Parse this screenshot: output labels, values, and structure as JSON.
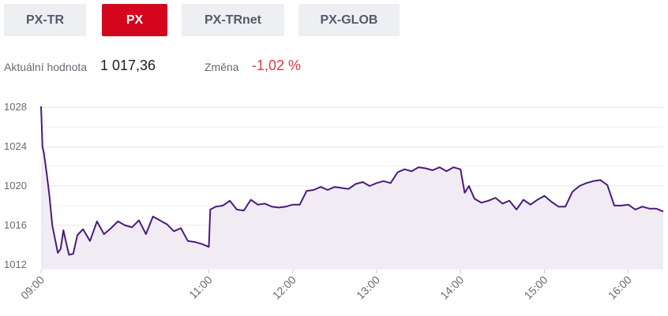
{
  "tabs": [
    {
      "label": "PX-TR",
      "active": false
    },
    {
      "label": "PX",
      "active": true
    },
    {
      "label": "PX-TRnet",
      "active": false
    },
    {
      "label": "PX-GLOB",
      "active": false
    }
  ],
  "stats": {
    "current_label": "Aktuální hodnota",
    "current_value": "1 017,36",
    "change_label": "Změna",
    "change_value": "-1,02 %"
  },
  "colors": {
    "accent": "#d4061f",
    "line": "#4b1a7e",
    "area": "#efeaf3",
    "negative": "#e0394b",
    "grid": "#e6e6e6"
  },
  "chart_data": {
    "type": "area",
    "title": "",
    "xlabel": "",
    "ylabel": "",
    "ylim": [
      1011.5,
      1028.5
    ],
    "xlim": [
      "09:00",
      "16:25"
    ],
    "grid": true,
    "legend": "none",
    "y_ticks": [
      "1012",
      "1016",
      "1020",
      "1024",
      "1028"
    ],
    "x_ticks": [
      "09:00",
      "11:00",
      "12:00",
      "13:00",
      "14:00",
      "15:00",
      "16:00"
    ],
    "series": [
      {
        "x": [
          "09:00",
          "09:01",
          "09:02",
          "09:04",
          "09:06",
          "09:08",
          "09:10",
          "09:12",
          "09:14",
          "09:16",
          "09:18",
          "09:20",
          "09:23",
          "09:26",
          "09:30",
          "09:35",
          "09:40",
          "09:45",
          "09:50",
          "09:55",
          "10:00",
          "10:05",
          "10:10",
          "10:15",
          "10:20",
          "10:25",
          "10:30",
          "10:35",
          "10:40",
          "10:45",
          "10:50",
          "10:55",
          "11:00",
          "11:01",
          "11:05",
          "11:10",
          "11:15",
          "11:20",
          "11:25",
          "11:30",
          "11:35",
          "11:40",
          "11:45",
          "11:50",
          "11:55",
          "12:00",
          "12:05",
          "12:10",
          "12:15",
          "12:20",
          "12:25",
          "12:30",
          "12:35",
          "12:40",
          "12:45",
          "12:50",
          "12:55",
          "13:00",
          "13:05",
          "13:10",
          "13:15",
          "13:20",
          "13:25",
          "13:30",
          "13:35",
          "13:40",
          "13:45",
          "13:50",
          "13:55",
          "14:00",
          "14:03",
          "14:06",
          "14:10",
          "14:15",
          "14:20",
          "14:25",
          "14:30",
          "14:35",
          "14:40",
          "14:45",
          "14:50",
          "14:55",
          "15:00",
          "15:05",
          "15:10",
          "15:15",
          "15:20",
          "15:25",
          "15:30",
          "15:35",
          "15:40",
          "15:45",
          "15:50",
          "15:55",
          "16:00",
          "16:05",
          "16:10",
          "16:15",
          "16:20",
          "16:25"
        ],
        "y": [
          1028.1,
          1024.0,
          1023.4,
          1021.3,
          1019.0,
          1016.0,
          1014.6,
          1013.2,
          1013.6,
          1015.5,
          1014.2,
          1013.0,
          1013.1,
          1015.0,
          1015.6,
          1014.4,
          1016.4,
          1015.1,
          1015.7,
          1016.4,
          1016.0,
          1015.8,
          1016.5,
          1015.1,
          1016.9,
          1016.5,
          1016.1,
          1015.4,
          1015.7,
          1014.4,
          1014.3,
          1014.1,
          1013.8,
          1017.6,
          1017.9,
          1018.0,
          1018.5,
          1017.6,
          1017.5,
          1018.6,
          1018.1,
          1018.2,
          1017.9,
          1017.8,
          1017.9,
          1018.1,
          1018.1,
          1019.5,
          1019.6,
          1019.9,
          1019.6,
          1019.9,
          1019.8,
          1019.7,
          1020.2,
          1020.4,
          1020.0,
          1020.3,
          1020.5,
          1020.3,
          1021.4,
          1021.7,
          1021.5,
          1021.9,
          1021.8,
          1021.6,
          1021.9,
          1021.5,
          1021.9,
          1021.7,
          1019.3,
          1020.0,
          1018.7,
          1018.3,
          1018.5,
          1018.8,
          1018.2,
          1018.5,
          1017.6,
          1018.6,
          1018.1,
          1018.6,
          1019.0,
          1018.4,
          1017.9,
          1017.9,
          1019.4,
          1020.0,
          1020.3,
          1020.5,
          1020.6,
          1020.1,
          1018.0,
          1018.0,
          1018.1,
          1017.6,
          1017.9,
          1017.7,
          1017.7,
          1017.4
        ]
      }
    ]
  }
}
